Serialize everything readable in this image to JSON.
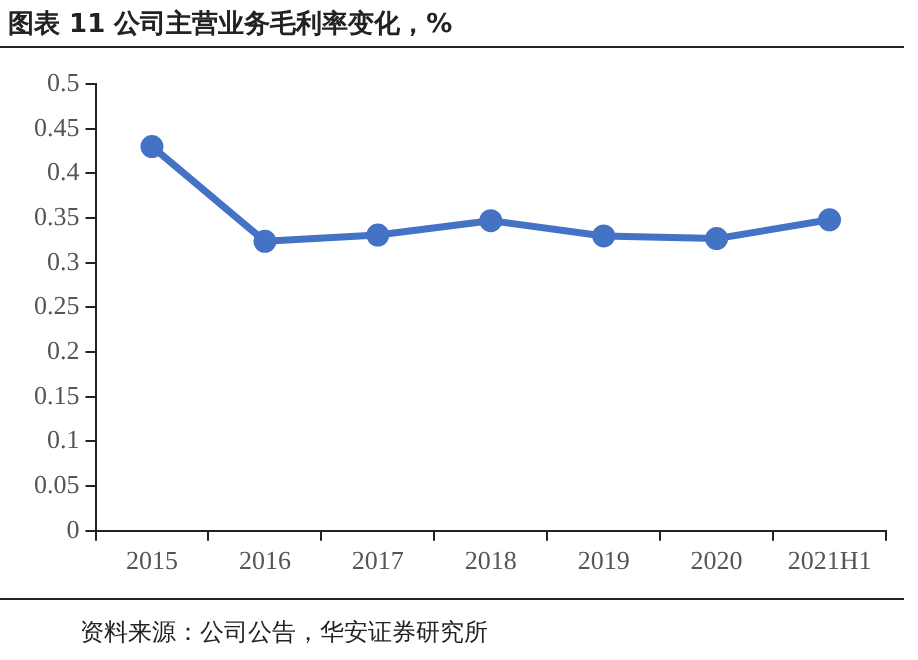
{
  "chart_data": {
    "type": "line",
    "title": "图表 11 公司主营业务毛利率变化，%",
    "categories": [
      "2015",
      "2016",
      "2017",
      "2018",
      "2019",
      "2020",
      "2021H1"
    ],
    "series": [
      {
        "color": "#4472c4",
        "values": [
          0.43,
          0.324,
          0.331,
          0.347,
          0.33,
          0.327,
          0.348
        ]
      }
    ],
    "ylim": [
      0,
      0.5
    ],
    "yticks": [
      0,
      0.05,
      0.1,
      0.15,
      0.2,
      0.25,
      0.3,
      0.35,
      0.4,
      0.45,
      0.5
    ],
    "grid": false,
    "legend": false,
    "marker": "circle",
    "line_style": "solid",
    "annotations": [
      "资料来源：公司公告，华安证券研究所"
    ]
  }
}
